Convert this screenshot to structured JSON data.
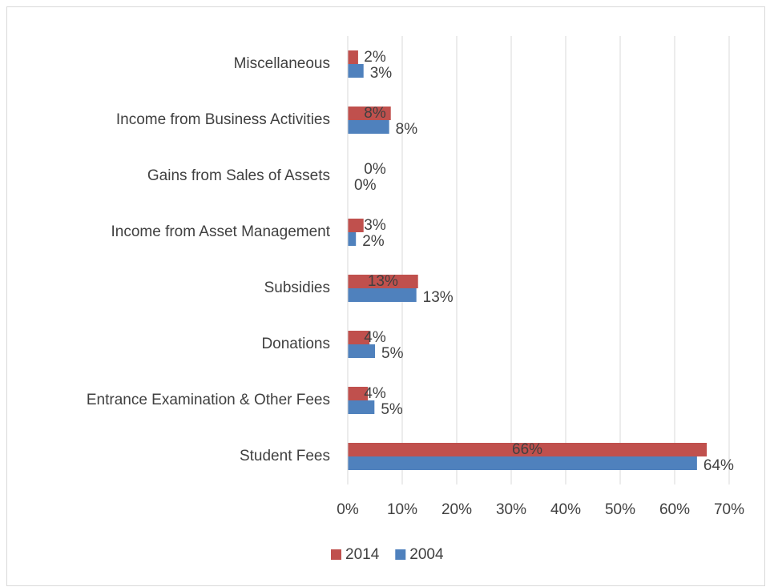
{
  "chart_data": {
    "type": "bar",
    "orientation": "horizontal",
    "categories": [
      "Miscellaneous",
      "Income from Business Activities",
      "Gains from Sales of Assets",
      "Income from Asset Management",
      "Subsidies",
      "Donations",
      "Entrance Examination & Other Fees",
      "Student Fees"
    ],
    "series": [
      {
        "name": "2014",
        "color": "#c0504d",
        "values": [
          1.9,
          7.9,
          0,
          2.9,
          12.9,
          4.0,
          3.7,
          65.9
        ],
        "value_labels": [
          "2%",
          "8%",
          "0%",
          "3%",
          "13%",
          "4%",
          "4%",
          "66%"
        ]
      },
      {
        "name": "2004",
        "color": "#4f81bd",
        "values": [
          2.9,
          7.6,
          0,
          1.5,
          12.6,
          5.0,
          4.9,
          64.1
        ],
        "value_labels": [
          "3%",
          "8%",
          "0%",
          "2%",
          "13%",
          "5%",
          "5%",
          "64%"
        ]
      }
    ],
    "xlim": [
      0,
      70
    ],
    "xticks": [
      {
        "value": 0,
        "label": "0%"
      },
      {
        "value": 10,
        "label": "10%"
      },
      {
        "value": 20,
        "label": "20%"
      },
      {
        "value": 30,
        "label": "30%"
      },
      {
        "value": 40,
        "label": "40%"
      },
      {
        "value": 50,
        "label": "50%"
      },
      {
        "value": 60,
        "label": "60%"
      },
      {
        "value": 70,
        "label": "70%"
      }
    ],
    "grid": true,
    "legend": "bottom"
  }
}
